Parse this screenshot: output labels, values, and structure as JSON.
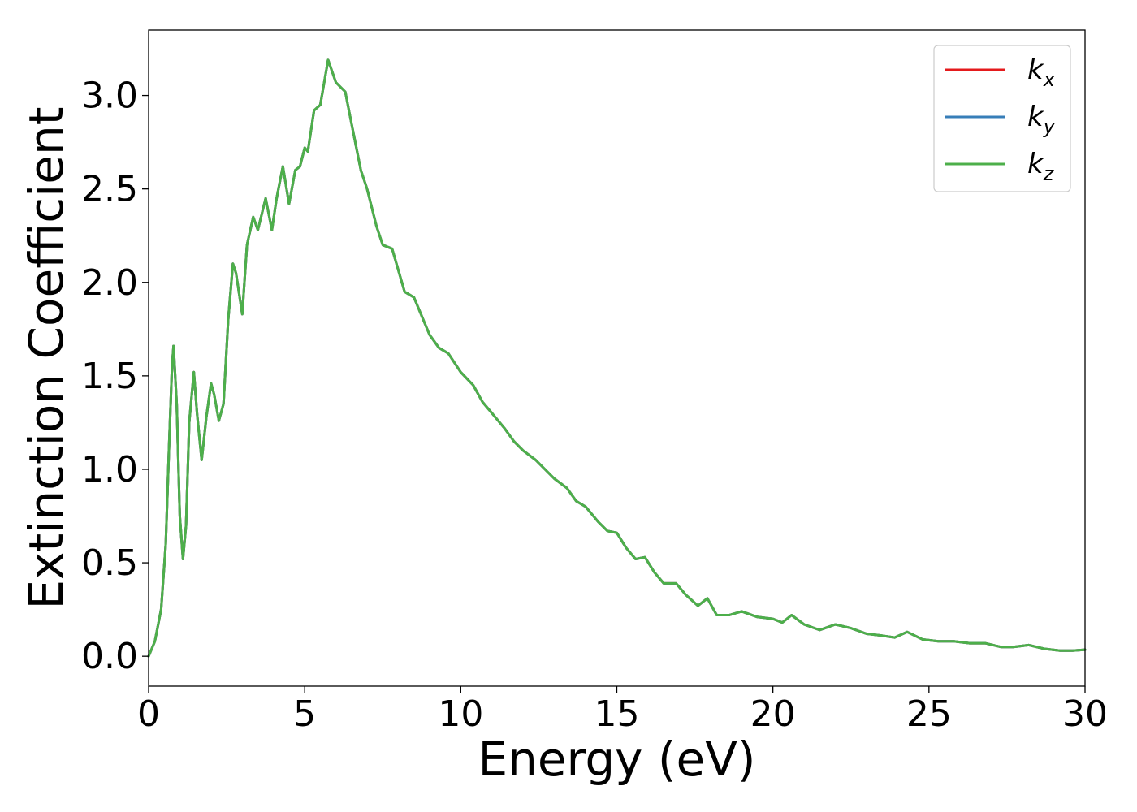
{
  "chart_data": {
    "type": "line",
    "xlabel": "Energy (eV)",
    "ylabel": "Extinction Coefficient",
    "xlim": [
      0,
      30
    ],
    "ylim": [
      -0.16,
      3.35
    ],
    "xticks": [
      0,
      5,
      10,
      15,
      20,
      25,
      30
    ],
    "xtick_labels": [
      "0",
      "5",
      "10",
      "15",
      "20",
      "25",
      "30"
    ],
    "yticks": [
      0.0,
      0.5,
      1.0,
      1.5,
      2.0,
      2.5,
      3.0
    ],
    "ytick_labels": [
      "0.0",
      "0.5",
      "1.0",
      "1.5",
      "2.0",
      "2.5",
      "3.0"
    ],
    "grid": false,
    "legend_position": "top-right",
    "x": [
      0,
      0.2,
      0.4,
      0.55,
      0.65,
      0.75,
      0.8,
      0.9,
      1.0,
      1.1,
      1.2,
      1.3,
      1.45,
      1.55,
      1.7,
      1.85,
      2.0,
      2.1,
      2.25,
      2.4,
      2.55,
      2.7,
      2.8,
      3.0,
      3.15,
      3.35,
      3.5,
      3.75,
      3.95,
      4.1,
      4.3,
      4.5,
      4.7,
      4.85,
      5.0,
      5.1,
      5.3,
      5.5,
      5.75,
      6.0,
      6.3,
      6.5,
      6.8,
      7.0,
      7.3,
      7.5,
      7.8,
      8.2,
      8.5,
      8.8,
      9.0,
      9.3,
      9.6,
      10.0,
      10.4,
      10.7,
      11.0,
      11.4,
      11.7,
      12.0,
      12.4,
      12.7,
      13.0,
      13.4,
      13.7,
      14.0,
      14.4,
      14.7,
      15.0,
      15.3,
      15.6,
      15.9,
      16.2,
      16.5,
      16.9,
      17.2,
      17.6,
      17.9,
      18.2,
      18.6,
      19.0,
      19.5,
      20.0,
      20.3,
      20.6,
      21.0,
      21.5,
      22.0,
      22.5,
      23.0,
      23.5,
      23.9,
      24.3,
      24.8,
      25.3,
      25.8,
      26.3,
      26.8,
      27.3,
      27.7,
      28.2,
      28.7,
      29.2,
      29.6,
      30.0
    ],
    "series": [
      {
        "name": "kx",
        "label_main": "k",
        "label_sub": "x",
        "color": "#e41a1c",
        "values": [
          0.0,
          0.08,
          0.25,
          0.6,
          1.1,
          1.55,
          1.66,
          1.35,
          0.75,
          0.52,
          0.7,
          1.25,
          1.52,
          1.3,
          1.05,
          1.28,
          1.46,
          1.4,
          1.26,
          1.35,
          1.8,
          2.1,
          2.05,
          1.83,
          2.2,
          2.35,
          2.28,
          2.45,
          2.28,
          2.45,
          2.62,
          2.42,
          2.6,
          2.62,
          2.72,
          2.7,
          2.92,
          2.95,
          3.19,
          3.07,
          3.02,
          2.85,
          2.6,
          2.5,
          2.3,
          2.2,
          2.18,
          1.95,
          1.92,
          1.8,
          1.72,
          1.65,
          1.62,
          1.52,
          1.45,
          1.36,
          1.3,
          1.22,
          1.15,
          1.1,
          1.05,
          1.0,
          0.95,
          0.9,
          0.83,
          0.8,
          0.72,
          0.67,
          0.66,
          0.58,
          0.52,
          0.53,
          0.45,
          0.39,
          0.39,
          0.33,
          0.27,
          0.31,
          0.22,
          0.22,
          0.24,
          0.21,
          0.2,
          0.18,
          0.22,
          0.17,
          0.14,
          0.17,
          0.15,
          0.12,
          0.11,
          0.1,
          0.13,
          0.09,
          0.08,
          0.08,
          0.07,
          0.07,
          0.05,
          0.05,
          0.06,
          0.04,
          0.03,
          0.03,
          0.035
        ]
      },
      {
        "name": "ky",
        "label_main": "k",
        "label_sub": "y",
        "color": "#377eb8",
        "values": [
          0.0,
          0.08,
          0.25,
          0.6,
          1.1,
          1.55,
          1.66,
          1.35,
          0.75,
          0.52,
          0.7,
          1.25,
          1.52,
          1.3,
          1.05,
          1.28,
          1.46,
          1.4,
          1.26,
          1.35,
          1.8,
          2.1,
          2.05,
          1.83,
          2.2,
          2.35,
          2.28,
          2.45,
          2.28,
          2.45,
          2.62,
          2.42,
          2.6,
          2.62,
          2.72,
          2.7,
          2.92,
          2.95,
          3.19,
          3.07,
          3.02,
          2.85,
          2.6,
          2.5,
          2.3,
          2.2,
          2.18,
          1.95,
          1.92,
          1.8,
          1.72,
          1.65,
          1.62,
          1.52,
          1.45,
          1.36,
          1.3,
          1.22,
          1.15,
          1.1,
          1.05,
          1.0,
          0.95,
          0.9,
          0.83,
          0.8,
          0.72,
          0.67,
          0.66,
          0.58,
          0.52,
          0.53,
          0.45,
          0.39,
          0.39,
          0.33,
          0.27,
          0.31,
          0.22,
          0.22,
          0.24,
          0.21,
          0.2,
          0.18,
          0.22,
          0.17,
          0.14,
          0.17,
          0.15,
          0.12,
          0.11,
          0.1,
          0.13,
          0.09,
          0.08,
          0.08,
          0.07,
          0.07,
          0.05,
          0.05,
          0.06,
          0.04,
          0.03,
          0.03,
          0.035
        ]
      },
      {
        "name": "kz",
        "label_main": "k",
        "label_sub": "z",
        "color": "#4daf4a",
        "values": [
          0.0,
          0.08,
          0.25,
          0.6,
          1.1,
          1.55,
          1.66,
          1.35,
          0.75,
          0.52,
          0.7,
          1.25,
          1.52,
          1.3,
          1.05,
          1.28,
          1.46,
          1.4,
          1.26,
          1.35,
          1.8,
          2.1,
          2.05,
          1.83,
          2.2,
          2.35,
          2.28,
          2.45,
          2.28,
          2.45,
          2.62,
          2.42,
          2.6,
          2.62,
          2.72,
          2.7,
          2.92,
          2.95,
          3.19,
          3.07,
          3.02,
          2.85,
          2.6,
          2.5,
          2.3,
          2.2,
          2.18,
          1.95,
          1.92,
          1.8,
          1.72,
          1.65,
          1.62,
          1.52,
          1.45,
          1.36,
          1.3,
          1.22,
          1.15,
          1.1,
          1.05,
          1.0,
          0.95,
          0.9,
          0.83,
          0.8,
          0.72,
          0.67,
          0.66,
          0.58,
          0.52,
          0.53,
          0.45,
          0.39,
          0.39,
          0.33,
          0.27,
          0.31,
          0.22,
          0.22,
          0.24,
          0.21,
          0.2,
          0.18,
          0.22,
          0.17,
          0.14,
          0.17,
          0.15,
          0.12,
          0.11,
          0.1,
          0.13,
          0.09,
          0.08,
          0.08,
          0.07,
          0.07,
          0.05,
          0.05,
          0.06,
          0.04,
          0.03,
          0.03,
          0.035
        ]
      }
    ]
  }
}
